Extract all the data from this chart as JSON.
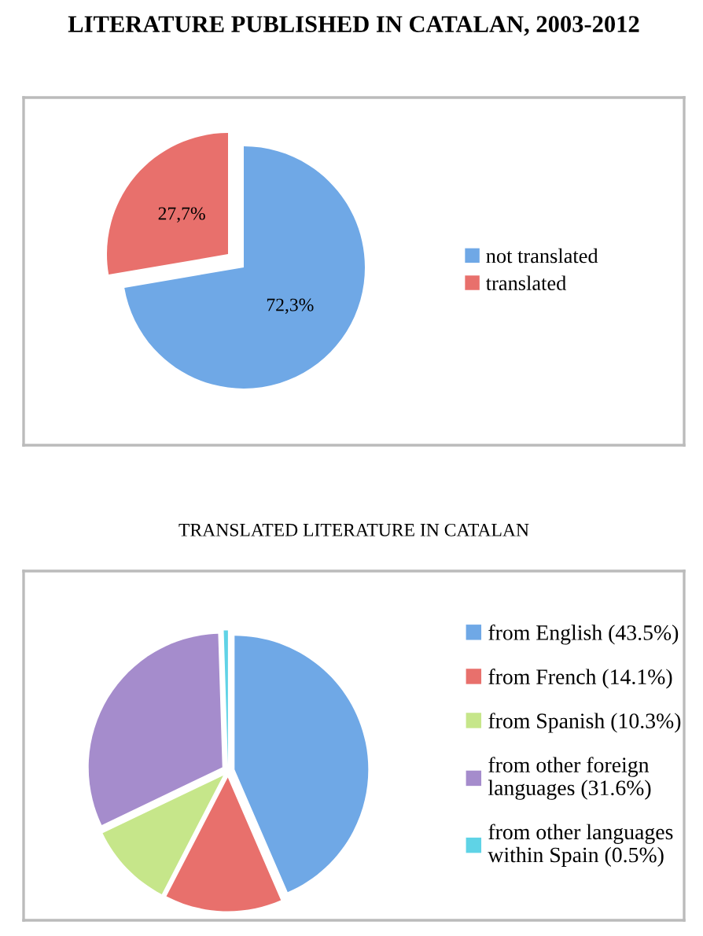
{
  "chart_data": [
    {
      "type": "pie",
      "title": "LITERATURE PUBLISHED IN CATALAN, 2003-2012",
      "categories": [
        "not translated",
        "translated"
      ],
      "values": [
        72.3,
        27.7
      ],
      "value_labels": [
        "72,3%",
        "27,7%"
      ],
      "colors": [
        "#6fa8e6",
        "#e8706c"
      ],
      "legend": "right"
    },
    {
      "type": "pie",
      "title": "TRANSLATED LITERATURE IN CATALAN",
      "categories": [
        "from English (43.5%)",
        "from French (14.1%)",
        "from Spanish (10.3%)",
        "from other foreign\nlanguages (31.6%)",
        "from other languages\nwithin Spain (0.5%)"
      ],
      "values": [
        43.5,
        14.1,
        10.3,
        31.6,
        0.5
      ],
      "colors": [
        "#6fa8e6",
        "#e8706c",
        "#c6e68a",
        "#a58ccc",
        "#5fd3e6"
      ],
      "legend": "right"
    }
  ]
}
